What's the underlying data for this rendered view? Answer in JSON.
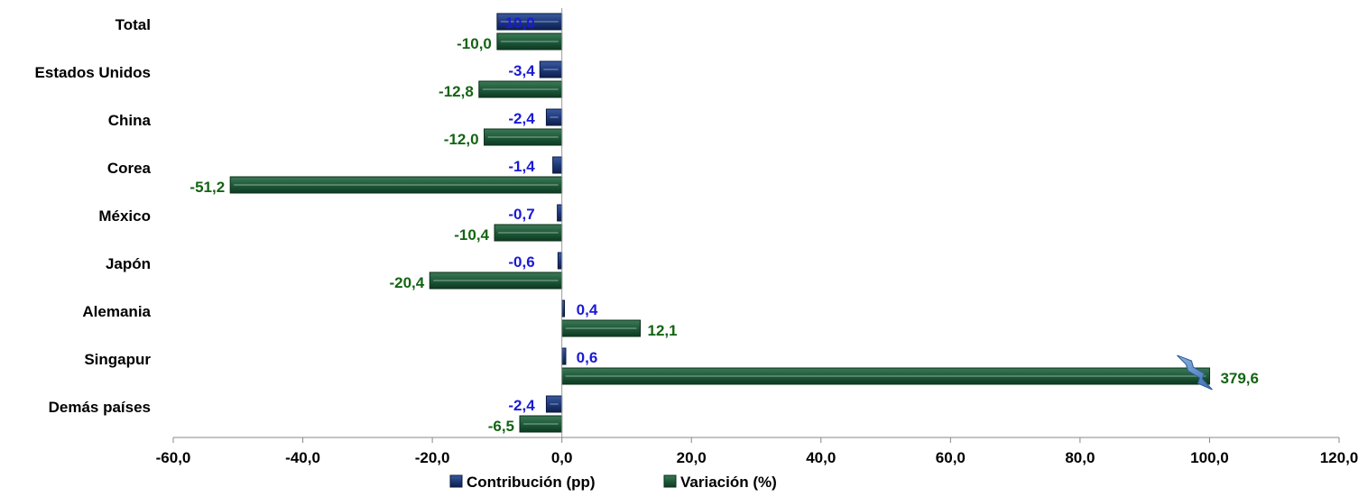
{
  "chart_data": {
    "type": "bar",
    "orientation": "horizontal",
    "categories": [
      "Total",
      "Estados Unidos",
      "China",
      "Corea",
      "México",
      "Japón",
      "Alemania",
      "Singapur",
      "Demás países"
    ],
    "series": [
      {
        "name": "Contribución (pp)",
        "color": "#1f3a7a",
        "label_color": "#1a1ad6",
        "values": [
          -10.0,
          -3.4,
          -2.4,
          -1.4,
          -0.7,
          -0.6,
          0.4,
          0.6,
          -2.4
        ],
        "labels": [
          "-10,0",
          "-3,4",
          "-2,4",
          "-1,4",
          "-0,7",
          "-0,6",
          "0,4",
          "0,6",
          "-2,4"
        ]
      },
      {
        "name": "Variación (%)",
        "color": "#1e5a3a",
        "label_color": "#146414",
        "values": [
          -10.0,
          -12.8,
          -12.0,
          -51.2,
          -10.4,
          -20.4,
          12.1,
          379.6,
          -6.5
        ],
        "labels": [
          "-10,0",
          "-12,8",
          "-12,0",
          "-51,2",
          "-10,4",
          "-20,4",
          "12,1",
          "379,6",
          "-6,5"
        ],
        "axis_break": {
          "category": "Singapur",
          "display_max": 100.0
        }
      }
    ],
    "xlim": [
      -60.0,
      120.0
    ],
    "xticks": [
      -60,
      -40,
      -20,
      0,
      20,
      40,
      60,
      80,
      100,
      120
    ],
    "xtick_labels": [
      "-60,0",
      "-40,0",
      "-20,0",
      "0,0",
      "20,0",
      "40,0",
      "60,0",
      "80,0",
      "100,0",
      "120,0"
    ],
    "legend_position": "bottom",
    "grid": false
  }
}
